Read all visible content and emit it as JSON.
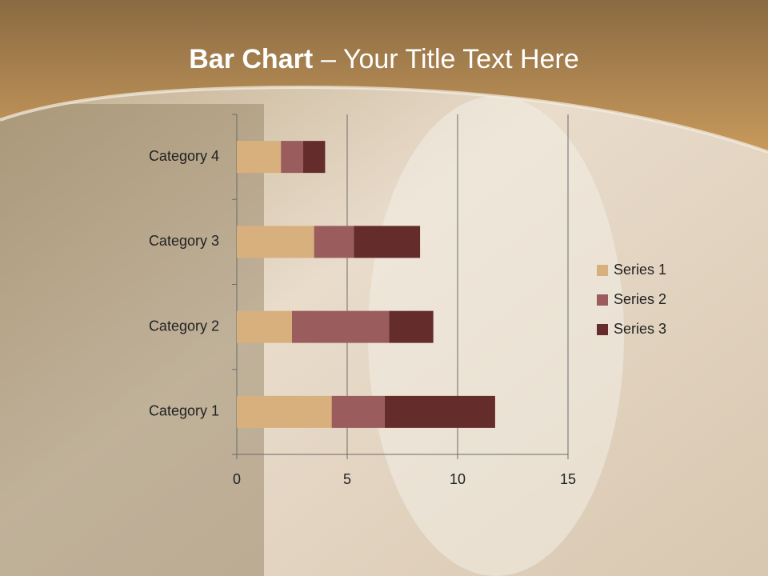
{
  "chart_data": {
    "type": "stacked-bar-horizontal",
    "title": {
      "bold": "Bar Chart",
      "rest": "– Your Title Text Here"
    },
    "categories": [
      "Category 1",
      "Category 2",
      "Category 3",
      "Category 4"
    ],
    "series": [
      {
        "name": "Series 1",
        "color": "#d8b07e",
        "values": [
          4.3,
          2.5,
          3.5,
          2
        ]
      },
      {
        "name": "Series 2",
        "color": "#9a5c5c",
        "values": [
          2.4,
          4.4,
          1.8,
          1
        ]
      },
      {
        "name": "Series 3",
        "color": "#652c2c",
        "values": [
          5,
          2,
          3,
          1
        ]
      }
    ],
    "xlim": [
      0,
      15
    ],
    "xticks": [
      0,
      5,
      10,
      15
    ],
    "grid": true,
    "legend": "right"
  }
}
